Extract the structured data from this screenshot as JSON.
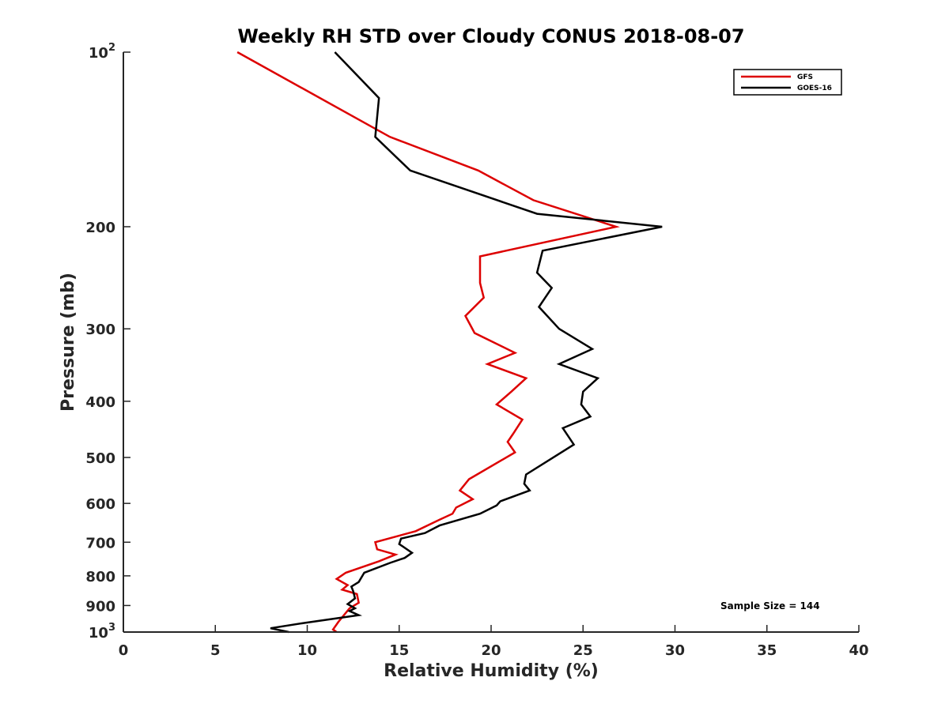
{
  "colors": {
    "GFS": "#dd0000",
    "GOES-16": "#000000",
    "axis": "#262626"
  },
  "chart_data": {
    "type": "line",
    "title": "Weekly RH STD over Cloudy CONUS 2018-08-07",
    "xlabel": "Relative Humidity (%)",
    "ylabel": "Pressure (mb)",
    "xlim": [
      0,
      40
    ],
    "ylim": [
      100,
      1000
    ],
    "yscale": "log",
    "y_reversed": true,
    "grid": false,
    "legend_position": "top-right",
    "x_ticks": [
      "0",
      "5",
      "10",
      "15",
      "20",
      "25",
      "30",
      "35",
      "40"
    ],
    "y_ticks": [
      {
        "value": 100,
        "base": "10",
        "exp": "2"
      },
      {
        "value": 200,
        "label": "200"
      },
      {
        "value": 300,
        "label": "300"
      },
      {
        "value": 400,
        "label": "400"
      },
      {
        "value": 500,
        "label": "500"
      },
      {
        "value": 600,
        "label": "600"
      },
      {
        "value": 700,
        "label": "700"
      },
      {
        "value": 800,
        "label": "800"
      },
      {
        "value": 900,
        "label": "900"
      },
      {
        "value": 1000,
        "base": "10",
        "exp": "3"
      }
    ],
    "annotation": "Sample Size = 144",
    "series": [
      {
        "name": "GFS",
        "color": "#dd0000",
        "points": [
          [
            6.2,
            100
          ],
          [
            14.5,
            140
          ],
          [
            19.3,
            160
          ],
          [
            22.3,
            180
          ],
          [
            26.8,
            200
          ],
          [
            19.4,
            225
          ],
          [
            19.4,
            250
          ],
          [
            19.6,
            265
          ],
          [
            18.6,
            285
          ],
          [
            19.1,
            305
          ],
          [
            21.3,
            330
          ],
          [
            19.8,
            345
          ],
          [
            21.9,
            365
          ],
          [
            21.1,
            385
          ],
          [
            20.3,
            405
          ],
          [
            21.7,
            430
          ],
          [
            21.2,
            455
          ],
          [
            20.9,
            470
          ],
          [
            21.3,
            490
          ],
          [
            18.8,
            545
          ],
          [
            18.3,
            570
          ],
          [
            19.0,
            590
          ],
          [
            18.1,
            610
          ],
          [
            17.9,
            625
          ],
          [
            17.2,
            640
          ],
          [
            15.9,
            670
          ],
          [
            13.7,
            700
          ],
          [
            13.8,
            720
          ],
          [
            14.8,
            735
          ],
          [
            13.9,
            755
          ],
          [
            12.1,
            790
          ],
          [
            11.6,
            810
          ],
          [
            12.2,
            830
          ],
          [
            11.9,
            845
          ],
          [
            12.7,
            860
          ],
          [
            12.8,
            890
          ],
          [
            12.3,
            910
          ],
          [
            11.7,
            960
          ],
          [
            11.4,
            990
          ],
          [
            11.6,
            1000
          ]
        ]
      },
      {
        "name": "GOES-16",
        "color": "#000000",
        "points": [
          [
            11.5,
            100
          ],
          [
            13.9,
            120
          ],
          [
            13.7,
            140
          ],
          [
            15.6,
            160
          ],
          [
            22.5,
            190
          ],
          [
            29.3,
            200
          ],
          [
            22.8,
            220
          ],
          [
            22.5,
            240
          ],
          [
            23.3,
            255
          ],
          [
            22.6,
            275
          ],
          [
            23.7,
            300
          ],
          [
            25.5,
            325
          ],
          [
            23.7,
            345
          ],
          [
            25.8,
            365
          ],
          [
            25.0,
            385
          ],
          [
            24.9,
            405
          ],
          [
            25.4,
            425
          ],
          [
            23.9,
            445
          ],
          [
            24.5,
            475
          ],
          [
            21.9,
            535
          ],
          [
            21.8,
            555
          ],
          [
            22.1,
            570
          ],
          [
            20.5,
            595
          ],
          [
            20.3,
            605
          ],
          [
            19.4,
            625
          ],
          [
            17.2,
            655
          ],
          [
            16.4,
            675
          ],
          [
            15.1,
            690
          ],
          [
            15.0,
            705
          ],
          [
            15.7,
            730
          ],
          [
            15.3,
            745
          ],
          [
            14.5,
            760
          ],
          [
            13.1,
            790
          ],
          [
            12.8,
            820
          ],
          [
            12.4,
            835
          ],
          [
            12.5,
            850
          ],
          [
            12.6,
            875
          ],
          [
            12.2,
            895
          ],
          [
            12.6,
            910
          ],
          [
            12.3,
            920
          ],
          [
            12.8,
            935
          ],
          [
            9.8,
            965
          ],
          [
            8.0,
            985
          ],
          [
            9.0,
            1000
          ]
        ]
      }
    ]
  }
}
